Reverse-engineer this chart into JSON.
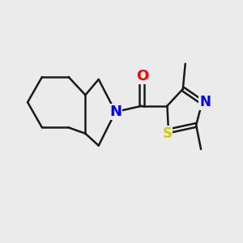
{
  "background_color": "#ebebeb",
  "line_color": "#1a1a1a",
  "N_color": "#0000ff",
  "O_color": "#ff0000",
  "S_color": "#cccc00",
  "bond_width": 1.8,
  "font_size": 13,
  "fig_width": 3.0,
  "fig_height": 3.0,
  "dpi": 100,
  "xlim": [
    0,
    10
  ],
  "ylim": [
    0,
    10
  ]
}
